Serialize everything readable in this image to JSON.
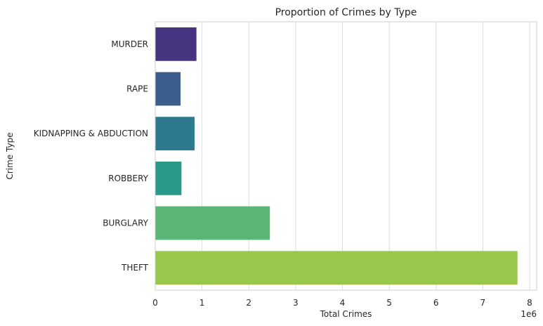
{
  "chart_data": {
    "type": "bar",
    "orientation": "horizontal",
    "title": "Proportion of Crimes by Type",
    "xlabel": "Total Crimes",
    "ylabel": "Crime Type",
    "x_offset_label": "1e6",
    "categories": [
      "MURDER",
      "RAPE",
      "KIDNAPPING & ABDUCTION",
      "ROBBERY",
      "BURGLARY",
      "THEFT"
    ],
    "values": [
      0.88,
      0.54,
      0.84,
      0.56,
      2.45,
      7.74
    ],
    "value_scale": 1000000,
    "xlim": [
      0,
      8.15
    ],
    "xticks": [
      "0",
      "1",
      "2",
      "3",
      "4",
      "5",
      "6",
      "7",
      "8"
    ],
    "grid": "vertical",
    "colors": [
      "#463480",
      "#3b5d8d",
      "#2d798e",
      "#29998a",
      "#5ab674",
      "#9ac74b"
    ]
  }
}
